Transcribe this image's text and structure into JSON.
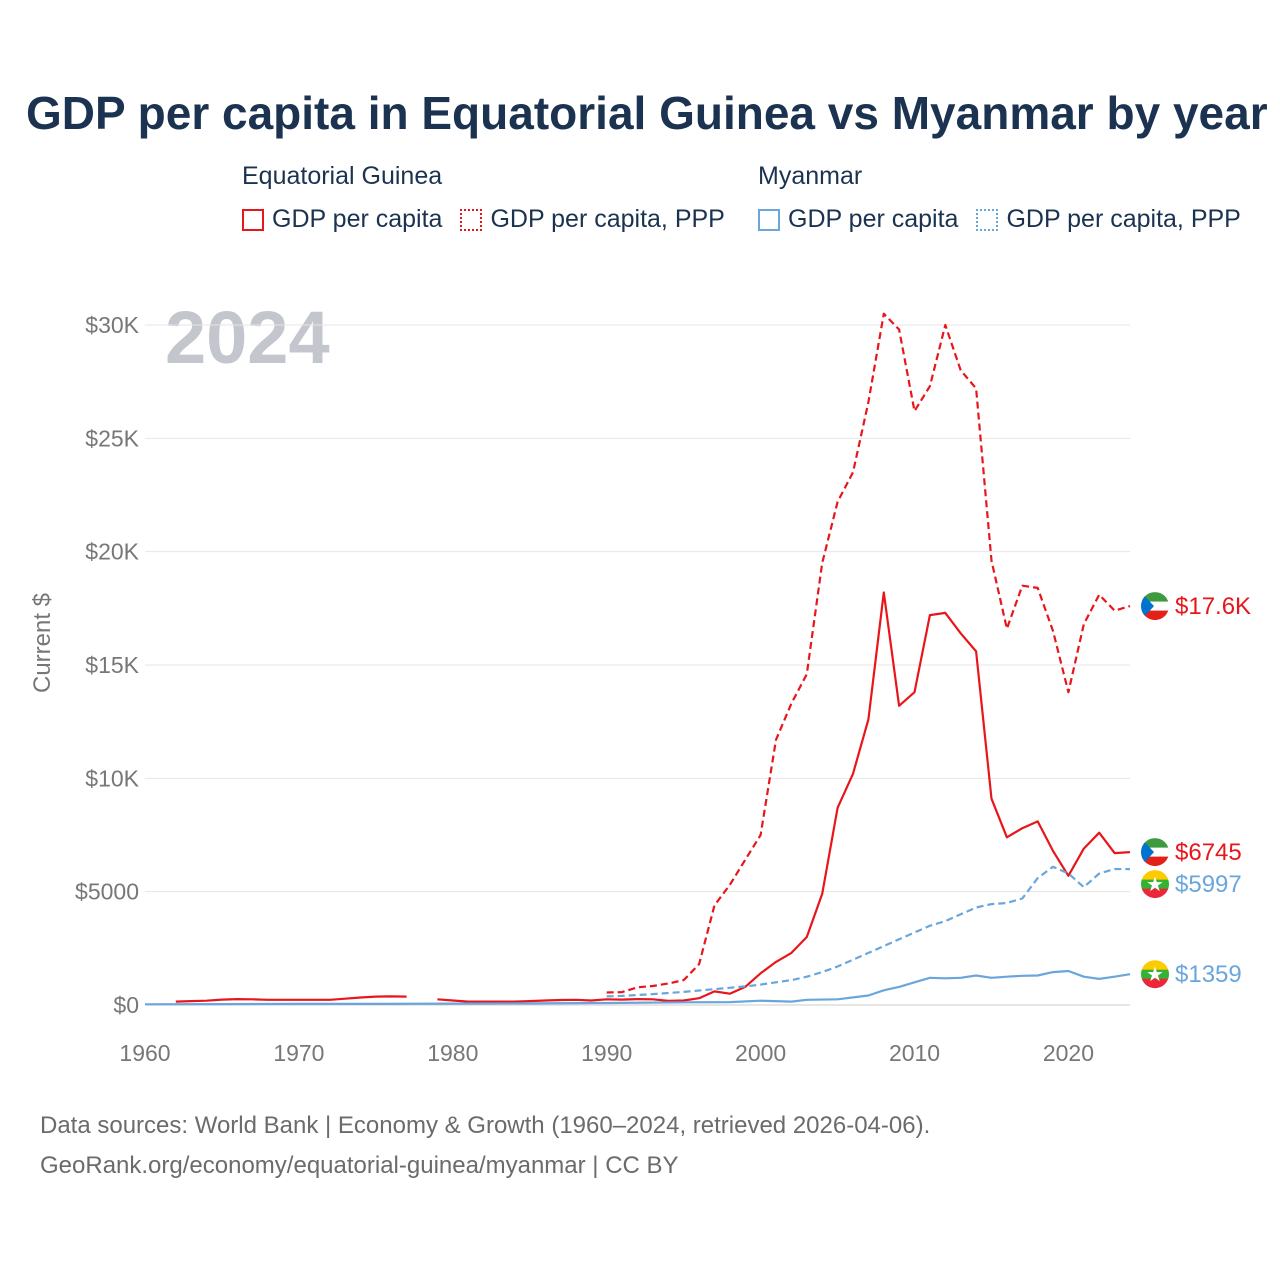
{
  "title": "GDP per capita in Equatorial Guinea vs Myanmar by year",
  "legend": {
    "groups": [
      {
        "name": "Equatorial Guinea",
        "items": [
          "GDP per capita",
          "GDP per capita, PPP"
        ]
      },
      {
        "name": "Myanmar",
        "items": [
          "GDP per capita",
          "GDP per capita, PPP"
        ]
      }
    ]
  },
  "year_watermark": "2024",
  "source": {
    "line1": "Data sources: World Bank | Economy & Growth (1960–2024, retrieved 2026-04-06).",
    "line2": "GeoRank.org/economy/equatorial-guinea/myanmar | CC BY"
  },
  "colors": {
    "equatorial_guinea": "#e8161b",
    "myanmar": "#6aa6dc",
    "grid": "#e6e6e6",
    "axis_text": "#777777"
  },
  "chart_data": {
    "type": "line",
    "title": "GDP per capita in Equatorial Guinea vs Myanmar by year",
    "xlabel": "",
    "ylabel": "Current $",
    "xlim": [
      1960,
      2024
    ],
    "ylim": [
      0,
      30000
    ],
    "x_ticks": [
      1960,
      1970,
      1980,
      1990,
      2000,
      2010,
      2020
    ],
    "x_tick_labels": [
      "1960",
      "1970",
      "1980",
      "1990",
      "2000",
      "2010",
      "2020"
    ],
    "y_ticks": [
      0,
      5000,
      10000,
      15000,
      20000,
      25000,
      30000
    ],
    "y_tick_labels": [
      "$0",
      "$5000",
      "$10K",
      "$15K",
      "$20K",
      "$25K",
      "$30K"
    ],
    "grid": true,
    "series": [
      {
        "name": "Equatorial Guinea GDP per capita, PPP",
        "country": "Equatorial Guinea",
        "style": "dashed",
        "color": "#e8161b",
        "end_label": "$17.6K",
        "points": [
          [
            1990,
            550
          ],
          [
            1991,
            570
          ],
          [
            1992,
            780
          ],
          [
            1993,
            840
          ],
          [
            1994,
            950
          ],
          [
            1995,
            1100
          ],
          [
            1996,
            1800
          ],
          [
            1997,
            4400
          ],
          [
            1998,
            5300
          ],
          [
            1999,
            6400
          ],
          [
            2000,
            7500
          ],
          [
            2001,
            11700
          ],
          [
            2002,
            13300
          ],
          [
            2003,
            14600
          ],
          [
            2004,
            19500
          ],
          [
            2005,
            22200
          ],
          [
            2006,
            23500
          ],
          [
            2007,
            26600
          ],
          [
            2008,
            30500
          ],
          [
            2009,
            29800
          ],
          [
            2010,
            26200
          ],
          [
            2011,
            27300
          ],
          [
            2012,
            30000
          ],
          [
            2013,
            28000
          ],
          [
            2014,
            27200
          ],
          [
            2015,
            19600
          ],
          [
            2016,
            16600
          ],
          [
            2017,
            18500
          ],
          [
            2018,
            18400
          ],
          [
            2019,
            16500
          ],
          [
            2020,
            13800
          ],
          [
            2021,
            16800
          ],
          [
            2022,
            18100
          ],
          [
            2023,
            17400
          ],
          [
            2024,
            17600
          ]
        ]
      },
      {
        "name": "Equatorial Guinea GDP per capita",
        "country": "Equatorial Guinea",
        "style": "solid",
        "color": "#e8161b",
        "end_label": "$6745",
        "points": [
          [
            1962,
            150
          ],
          [
            1963,
            170
          ],
          [
            1964,
            190
          ],
          [
            1965,
            240
          ],
          [
            1966,
            260
          ],
          [
            1967,
            250
          ],
          [
            1968,
            230
          ],
          [
            1969,
            230
          ],
          [
            1970,
            230
          ],
          [
            1971,
            230
          ],
          [
            1972,
            230
          ],
          [
            1973,
            280
          ],
          [
            1974,
            330
          ],
          [
            1975,
            370
          ],
          [
            1976,
            380
          ],
          [
            1977,
            370
          ],
          [
            1978,
            null
          ],
          [
            1979,
            250
          ],
          [
            1980,
            200
          ],
          [
            1981,
            150
          ],
          [
            1982,
            150
          ],
          [
            1983,
            150
          ],
          [
            1984,
            150
          ],
          [
            1985,
            170
          ],
          [
            1986,
            200
          ],
          [
            1987,
            220
          ],
          [
            1988,
            230
          ],
          [
            1989,
            200
          ],
          [
            1990,
            250
          ],
          [
            1991,
            240
          ],
          [
            1992,
            260
          ],
          [
            1993,
            250
          ],
          [
            1994,
            180
          ],
          [
            1995,
            200
          ],
          [
            1996,
            300
          ],
          [
            1997,
            600
          ],
          [
            1998,
            500
          ],
          [
            1999,
            800
          ],
          [
            2000,
            1400
          ],
          [
            2001,
            1900
          ],
          [
            2002,
            2300
          ],
          [
            2003,
            3000
          ],
          [
            2004,
            4900
          ],
          [
            2005,
            8700
          ],
          [
            2006,
            10200
          ],
          [
            2007,
            12600
          ],
          [
            2008,
            18200
          ],
          [
            2009,
            13200
          ],
          [
            2010,
            13800
          ],
          [
            2011,
            17200
          ],
          [
            2012,
            17300
          ],
          [
            2013,
            16400
          ],
          [
            2014,
            15600
          ],
          [
            2015,
            9100
          ],
          [
            2016,
            7400
          ],
          [
            2017,
            7800
          ],
          [
            2018,
            8100
          ],
          [
            2019,
            6800
          ],
          [
            2020,
            5700
          ],
          [
            2021,
            6900
          ],
          [
            2022,
            7600
          ],
          [
            2023,
            6700
          ],
          [
            2024,
            6745
          ]
        ]
      },
      {
        "name": "Myanmar GDP per capita, PPP",
        "country": "Myanmar",
        "style": "dashed",
        "color": "#6aa6dc",
        "end_label": "$5997",
        "points": [
          [
            1990,
            380
          ],
          [
            1991,
            400
          ],
          [
            1992,
            440
          ],
          [
            1993,
            480
          ],
          [
            1994,
            530
          ],
          [
            1995,
            580
          ],
          [
            1996,
            640
          ],
          [
            1997,
            700
          ],
          [
            1998,
            760
          ],
          [
            1999,
            820
          ],
          [
            2000,
            900
          ],
          [
            2001,
            1000
          ],
          [
            2002,
            1100
          ],
          [
            2003,
            1250
          ],
          [
            2004,
            1450
          ],
          [
            2005,
            1700
          ],
          [
            2006,
            2000
          ],
          [
            2007,
            2300
          ],
          [
            2008,
            2600
          ],
          [
            2009,
            2900
          ],
          [
            2010,
            3200
          ],
          [
            2011,
            3500
          ],
          [
            2012,
            3700
          ],
          [
            2013,
            4000
          ],
          [
            2014,
            4300
          ],
          [
            2015,
            4450
          ],
          [
            2016,
            4500
          ],
          [
            2017,
            4700
          ],
          [
            2018,
            5600
          ],
          [
            2019,
            6100
          ],
          [
            2020,
            5800
          ],
          [
            2021,
            5200
          ],
          [
            2022,
            5800
          ],
          [
            2023,
            6000
          ],
          [
            2024,
            5997
          ]
        ]
      },
      {
        "name": "Myanmar GDP per capita",
        "country": "Myanmar",
        "style": "solid",
        "color": "#6aa6dc",
        "end_label": "$1359",
        "points": [
          [
            1960,
            30
          ],
          [
            1965,
            40
          ],
          [
            1970,
            50
          ],
          [
            1975,
            50
          ],
          [
            1980,
            60
          ],
          [
            1985,
            70
          ],
          [
            1990,
            90
          ],
          [
            1995,
            120
          ],
          [
            1998,
            130
          ],
          [
            2000,
            190
          ],
          [
            2002,
            150
          ],
          [
            2003,
            230
          ],
          [
            2005,
            250
          ],
          [
            2007,
            420
          ],
          [
            2008,
            650
          ],
          [
            2009,
            800
          ],
          [
            2010,
            1000
          ],
          [
            2011,
            1200
          ],
          [
            2012,
            1180
          ],
          [
            2013,
            1200
          ],
          [
            2014,
            1300
          ],
          [
            2015,
            1200
          ],
          [
            2016,
            1250
          ],
          [
            2017,
            1290
          ],
          [
            2018,
            1300
          ],
          [
            2019,
            1450
          ],
          [
            2020,
            1500
          ],
          [
            2021,
            1250
          ],
          [
            2022,
            1150
          ],
          [
            2023,
            1250
          ],
          [
            2024,
            1359
          ]
        ]
      }
    ]
  }
}
